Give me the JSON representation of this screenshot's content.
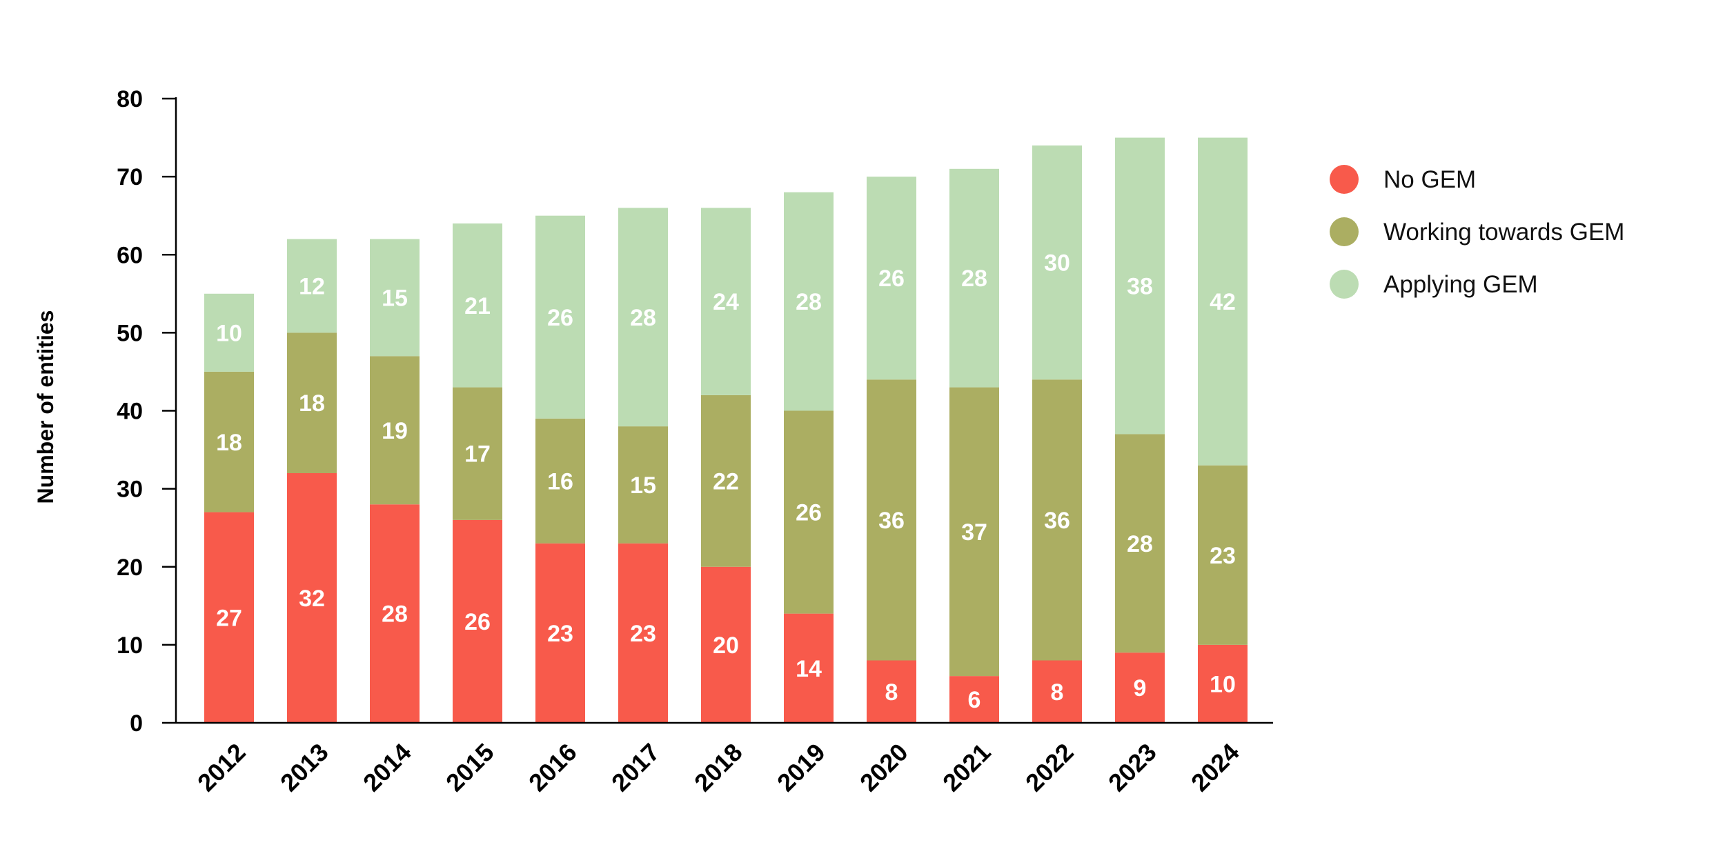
{
  "chart_data": {
    "type": "bar",
    "stacked": true,
    "title": "",
    "xlabel": "",
    "ylabel": "Number of entities",
    "ylim": [
      0,
      80
    ],
    "yticks": [
      0,
      10,
      20,
      30,
      40,
      50,
      60,
      70,
      80
    ],
    "categories": [
      "2012",
      "2013",
      "2014",
      "2015",
      "2016",
      "2017",
      "2018",
      "2019",
      "2020",
      "2021",
      "2022",
      "2023",
      "2024"
    ],
    "series": [
      {
        "name": "No GEM",
        "color": "#f85a4b",
        "values": [
          27,
          32,
          28,
          26,
          23,
          23,
          20,
          14,
          8,
          6,
          8,
          9,
          10
        ]
      },
      {
        "name": "Working towards GEM",
        "color": "#abae62",
        "values": [
          18,
          18,
          19,
          17,
          16,
          15,
          22,
          26,
          36,
          37,
          36,
          28,
          23
        ]
      },
      {
        "name": "Applying GEM",
        "color": "#bcdcb3",
        "values": [
          10,
          12,
          15,
          21,
          26,
          28,
          24,
          28,
          26,
          28,
          30,
          38,
          42
        ]
      }
    ],
    "legend_position": "right"
  }
}
